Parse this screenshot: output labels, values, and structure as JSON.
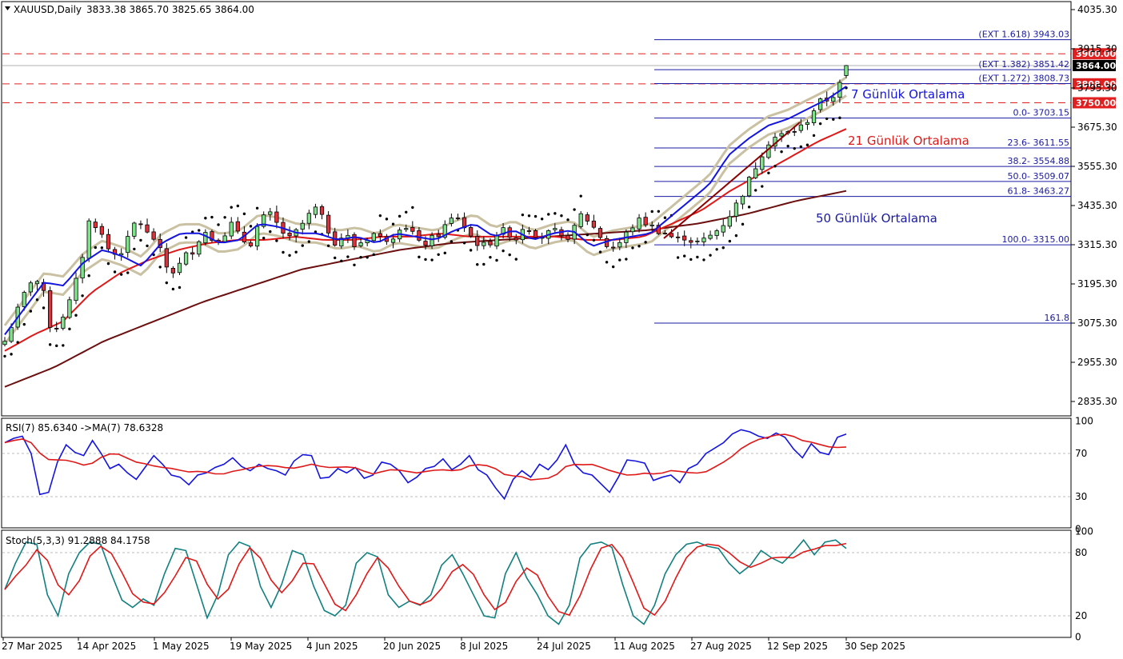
{
  "header": {
    "symbol": "XAUUSD,Daily",
    "ohlc": "3833.38 3865.70 3825.65 3864.00",
    "rsi_label": "RSI(7) 85.6340  ->MA(7) 78.6328",
    "stoch_label": "Stoch(5,3,3) 91.2888 84.1758"
  },
  "colors": {
    "bull": "#7ee38a",
    "bear": "#e0303a",
    "ma7": "#1414e0",
    "ma21": "#e01818",
    "ma50": "#6b0f0f",
    "bands": "#c9c1a2",
    "fib": "#1a1aa0",
    "level": "#e02020",
    "rsi": "#1414e0",
    "rsi_ma": "#e01818",
    "stoch_k": "#128080",
    "stoch_d": "#e01818"
  },
  "annotations": {
    "ma7": "7 Günlük Ortalama",
    "ma21": "21 Günlük Ortalama",
    "ma50": "50 Günlük Ortalama"
  },
  "chart_data": [
    {
      "type": "candlestick",
      "title": "XAUUSD,Daily",
      "ylim": [
        2775,
        4065
      ],
      "price_ticks": [
        "4035.30",
        "3915.30",
        "3795.30",
        "3675.30",
        "3555.30",
        "3435.30",
        "3315.30",
        "3195.30",
        "3075.30",
        "2955.30",
        "2835.30"
      ],
      "last_price": "3864.00",
      "date_ticks": [
        "27 Mar 2025",
        "14 Apr 2025",
        "1 May 2025",
        "19 May 2025",
        "4 Jun 2025",
        "20 Jun 2025",
        "8 Jul 2025",
        "24 Jul 2025",
        "11 Aug 2025",
        "27 Aug 2025",
        "12 Sep 2025",
        "30 Sep 2025"
      ],
      "levels": [
        {
          "value": 3900.0,
          "label": "3900.00"
        },
        {
          "value": 3808.0,
          "label": "3808.00"
        },
        {
          "value": 3750.0,
          "label": "3750.00"
        }
      ],
      "fibonacci": [
        {
          "value": 3943.03,
          "label": "(EXT 1.618)  3943.03"
        },
        {
          "value": 3851.42,
          "label": "(EXT 1.382)  3851.42"
        },
        {
          "value": 3808.73,
          "label": "(EXT 1.272)  3808.73"
        },
        {
          "value": 3703.15,
          "label": "0.0- 3703.15"
        },
        {
          "value": 3611.55,
          "label": "23.6- 3611.55"
        },
        {
          "value": 3554.88,
          "label": "38.2- 3554.88"
        },
        {
          "value": 3509.07,
          "label": "50.0- 3509.07"
        },
        {
          "value": 3463.27,
          "label": "61.8- 3463.27"
        },
        {
          "value": 3315.0,
          "label": "100.0- 3315.00"
        },
        {
          "value": 3075.3,
          "label": "161.8"
        }
      ],
      "key_prices": [
        3020,
        3090,
        3160,
        3220,
        3180,
        3040,
        3090,
        3150,
        3250,
        3400,
        3360,
        3300,
        3280,
        3330,
        3400,
        3350,
        3330,
        3250,
        3230,
        3280,
        3300,
        3360,
        3330,
        3340,
        3380,
        3330,
        3320,
        3390,
        3410,
        3370,
        3330,
        3360,
        3400,
        3430,
        3370,
        3320,
        3350,
        3310,
        3330,
        3350,
        3330,
        3340,
        3380,
        3360,
        3310,
        3330,
        3350,
        3390,
        3400,
        3350,
        3320,
        3310,
        3350,
        3360,
        3330,
        3380,
        3350,
        3340,
        3360,
        3330,
        3350,
        3410,
        3380,
        3340,
        3300,
        3320,
        3360,
        3390,
        3380,
        3360,
        3350,
        3330,
        3340,
        3320,
        3330,
        3350,
        3380,
        3420,
        3470,
        3530,
        3590,
        3640,
        3650,
        3660,
        3670,
        3700,
        3750,
        3760,
        3780,
        3860
      ],
      "ma7_anchor": [
        3040,
        3120,
        3200,
        3190,
        3260,
        3300,
        3280,
        3250,
        3320,
        3350,
        3350,
        3320,
        3330,
        3380,
        3370,
        3350,
        3350,
        3330,
        3340,
        3320,
        3350,
        3340,
        3330,
        3360,
        3380,
        3340,
        3360,
        3330,
        3350,
        3360,
        3310,
        3330,
        3340,
        3350,
        3400,
        3450,
        3500,
        3590,
        3640,
        3680,
        3700,
        3730,
        3760,
        3800
      ],
      "ma21_anchor": [
        2990,
        3040,
        3080,
        3170,
        3230,
        3270,
        3300,
        3320,
        3330,
        3330,
        3340,
        3330,
        3330,
        3340,
        3340,
        3350,
        3340,
        3340,
        3340,
        3340,
        3330,
        3330,
        3340,
        3380,
        3420,
        3480,
        3530,
        3580,
        3630,
        3670
      ],
      "ma50_anchor": [
        2880,
        2940,
        3020,
        3080,
        3140,
        3190,
        3240,
        3270,
        3300,
        3320,
        3330,
        3340,
        3350,
        3360,
        3380,
        3410,
        3450,
        3480
      ],
      "rsi": {
        "label": "RSI(7) 85.6340  ->MA(7) 78.6328",
        "value": 85.634,
        "ma": 78.6328,
        "ylim": [
          0,
          100
        ],
        "ticks": [
          100,
          70,
          30,
          0
        ],
        "series": [
          80,
          84,
          86,
          70,
          32,
          34,
          62,
          78,
          71,
          68,
          82,
          70,
          56,
          60,
          52,
          46,
          57,
          68,
          60,
          50,
          48,
          41,
          50,
          52,
          57,
          60,
          66,
          58,
          54,
          60,
          56,
          54,
          50,
          63,
          69,
          68,
          47,
          48,
          56,
          52,
          57,
          47,
          50,
          62,
          60,
          54,
          43,
          48,
          56,
          58,
          65,
          55,
          60,
          68,
          55,
          50,
          38,
          28,
          46,
          54,
          48,
          60,
          55,
          64,
          78,
          60,
          52,
          50,
          42,
          34,
          48,
          64,
          63,
          61,
          45,
          48,
          50,
          43,
          56,
          60,
          70,
          75,
          80,
          88,
          92,
          90,
          86,
          84,
          89,
          85,
          74,
          66,
          79,
          71,
          69,
          85,
          88
        ]
      },
      "stoch": {
        "label": "Stoch(5,3,3) 91.2888 84.1758",
        "k": 91.2888,
        "d": 84.1758,
        "ylim": [
          0,
          100
        ],
        "ticks": [
          100,
          80,
          20,
          0
        ],
        "series": [
          45,
          70,
          90,
          88,
          40,
          20,
          60,
          80,
          90,
          88,
          60,
          35,
          28,
          36,
          30,
          60,
          84,
          82,
          50,
          18,
          40,
          78,
          90,
          86,
          48,
          28,
          50,
          82,
          78,
          48,
          25,
          20,
          30,
          70,
          80,
          76,
          40,
          28,
          34,
          30,
          40,
          68,
          78,
          60,
          40,
          20,
          18,
          60,
          80,
          56,
          40,
          20,
          12,
          30,
          75,
          88,
          90,
          85,
          50,
          20,
          12,
          30,
          60,
          78,
          88,
          90,
          86,
          84,
          70,
          60,
          68,
          82,
          75,
          70,
          80,
          92,
          78,
          90,
          92,
          84
        ]
      }
    }
  ]
}
